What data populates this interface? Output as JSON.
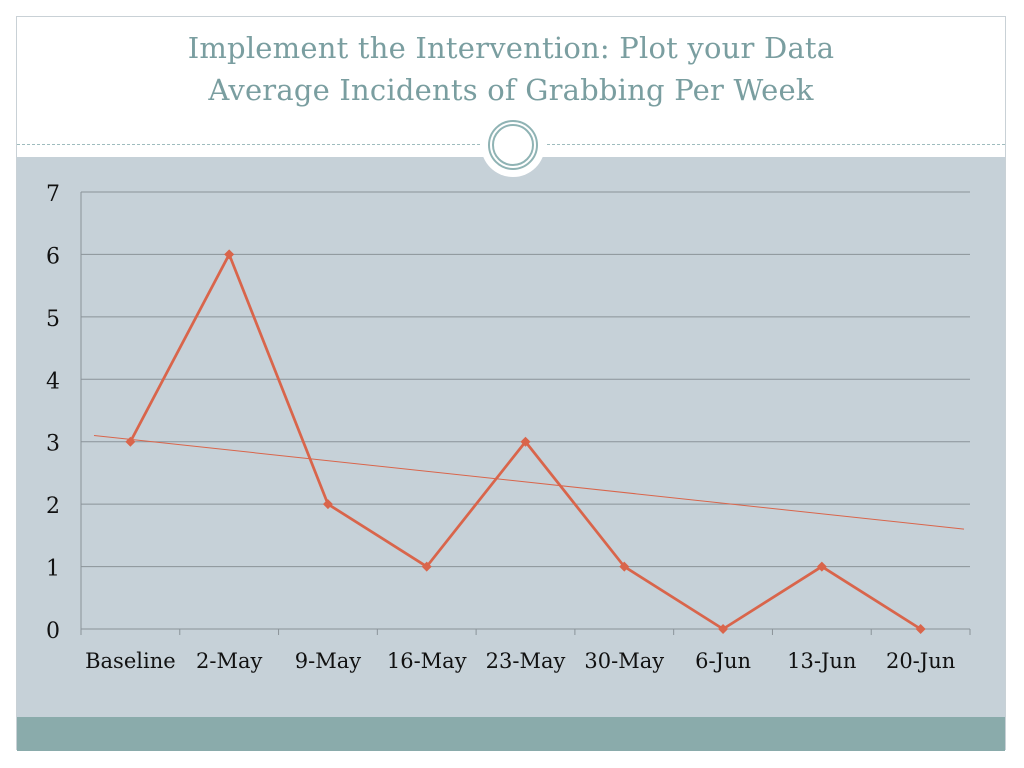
{
  "slide": {
    "title_line1": "Implement the Intervention:  Plot your Data",
    "title_line2": "Average Incidents of Grabbing Per Week"
  },
  "colors": {
    "title": "#7a9ea0",
    "plot_background": "#c6d1d8",
    "series": "#d9654b",
    "trendline": "#d9654b",
    "gridline": "#8a9399",
    "footer_bar": "#8aabab"
  },
  "chart_data": {
    "type": "line",
    "title": "",
    "xlabel": "",
    "ylabel": "",
    "categories": [
      "Baseline",
      "2-May",
      "9-May",
      "16-May",
      "23-May",
      "30-May",
      "6-Jun",
      "13-Jun",
      "20-Jun"
    ],
    "series": [
      {
        "values": [
          3,
          6,
          2,
          1,
          3,
          1,
          0,
          1,
          0
        ],
        "marker": "diamond"
      }
    ],
    "trendline": {
      "type": "linear",
      "start_value": 3.1,
      "end_value": 1.6
    },
    "ylim": [
      0,
      7
    ],
    "yticks": [
      0,
      1,
      2,
      3,
      4,
      5,
      6,
      7
    ],
    "grid": true,
    "legend": "none"
  }
}
